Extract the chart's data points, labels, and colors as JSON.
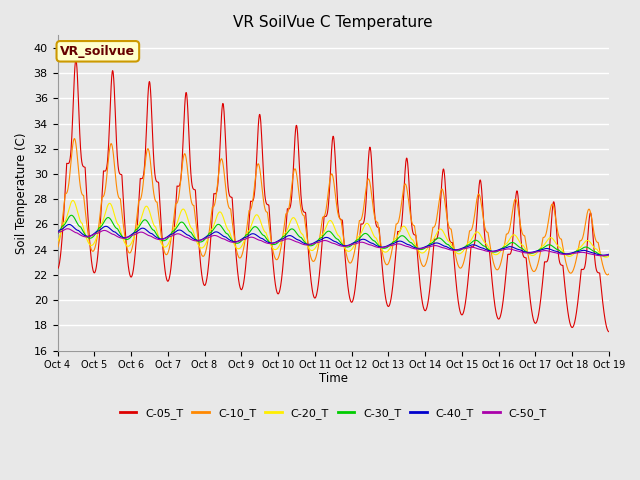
{
  "title": "VR SoilVue C Temperature",
  "ylabel": "Soil Temperature (C)",
  "xlabel": "Time",
  "ylim": [
    16,
    41
  ],
  "yticks": [
    16,
    18,
    20,
    22,
    24,
    26,
    28,
    30,
    32,
    34,
    36,
    38,
    40
  ],
  "background_color": "#e8e8e8",
  "plot_bg_color": "#e8e8e8",
  "grid_color": "#ffffff",
  "annotation_text": "VR_soilvue",
  "annotation_bg": "#ffffcc",
  "annotation_border": "#cc9900",
  "series": [
    {
      "label": "C-05_T",
      "color": "#dd0000"
    },
    {
      "label": "C-10_T",
      "color": "#ff8800"
    },
    {
      "label": "C-20_T",
      "color": "#ffee00"
    },
    {
      "label": "C-30_T",
      "color": "#00cc00"
    },
    {
      "label": "C-40_T",
      "color": "#0000cc"
    },
    {
      "label": "C-50_T",
      "color": "#aa00aa"
    }
  ],
  "date_labels": [
    "Oct 4",
    "Oct 5",
    "Oct 6",
    "Oct 7",
    "Oct 8",
    "Oct 9",
    "Oct 10",
    "Oct 11",
    "Oct 12",
    "Oct 13",
    "Oct 14",
    "Oct 15",
    "Oct 16",
    "Oct 17",
    "Oct 18",
    "Oct 19"
  ],
  "n_days": 15,
  "points_per_day": 144
}
